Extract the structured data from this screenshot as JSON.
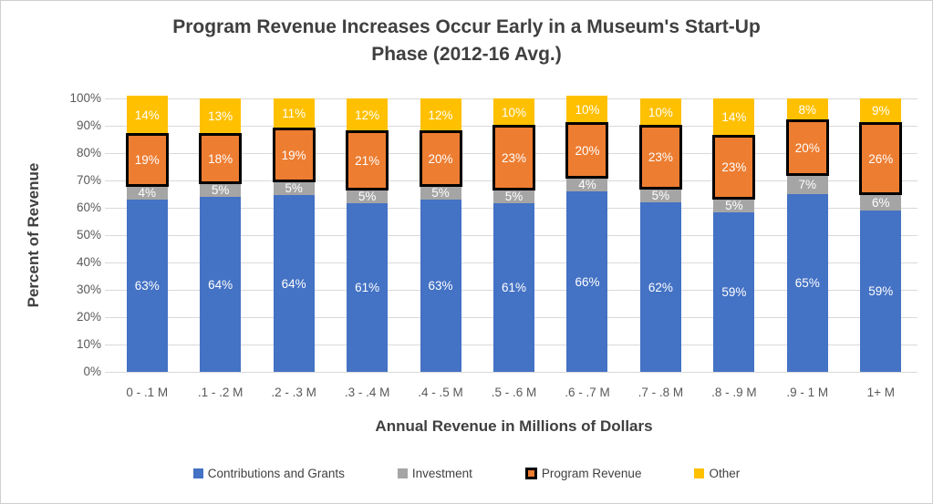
{
  "header": {
    "title_line1": "Program Revenue Increases Occur Early in a Museum's Start-Up",
    "title_line2": "Phase (2012-16 Avg.)"
  },
  "chart_data": {
    "type": "bar",
    "subtype": "stacked-100-percent",
    "title": "Program Revenue Increases Occur Early in a Museum's Start-Up Phase (2012-16 Avg.)",
    "xlabel": "Annual Revenue in Millions of Dollars",
    "ylabel": "Percent of Revenue",
    "ylim": [
      0,
      100
    ],
    "grid": true,
    "legend_position": "bottom",
    "value_suffix": "%",
    "y_ticks": [
      0,
      10,
      20,
      30,
      40,
      50,
      60,
      70,
      80,
      90,
      100
    ],
    "y_tick_labels": [
      "0%",
      "10%",
      "20%",
      "30%",
      "40%",
      "50%",
      "60%",
      "70%",
      "80%",
      "90%",
      "100%"
    ],
    "categories": [
      "0 - .1 M",
      ".1 - .2 M",
      ".2 - .3 M",
      ".3 - .4 M",
      ".4 - .5 M",
      ".5 - .6 M",
      ".6 - .7 M",
      ".7 - .8 M",
      ".8 - .9 M",
      ".9 - 1 M",
      "1+ M"
    ],
    "series": [
      {
        "name": "Contributions and Grants",
        "color": "#4472C4",
        "values": [
          63,
          64,
          64,
          61,
          63,
          61,
          66,
          62,
          59,
          65,
          59
        ]
      },
      {
        "name": "Investment",
        "color": "#A5A5A5",
        "values": [
          4,
          5,
          5,
          5,
          5,
          5,
          4,
          5,
          5,
          7,
          6
        ]
      },
      {
        "name": "Program Revenue",
        "color": "#ED7D31",
        "border_color": "#000000",
        "values": [
          19,
          18,
          19,
          21,
          20,
          23,
          20,
          23,
          23,
          20,
          26
        ]
      },
      {
        "name": "Other",
        "color": "#FFC000",
        "values": [
          14,
          13,
          11,
          12,
          12,
          10,
          10,
          10,
          14,
          8,
          9
        ]
      }
    ],
    "colors": {
      "gridline": "#D9D9D9",
      "axis_text": "#595959",
      "title_text": "#3F3F3F",
      "data_label_text": "#FFFFFF"
    }
  }
}
